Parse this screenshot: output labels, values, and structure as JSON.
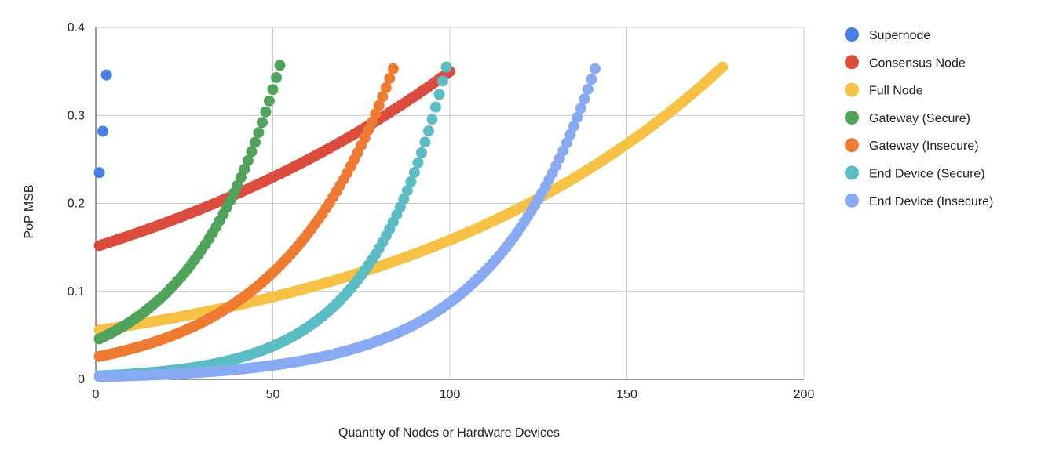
{
  "chart_data": {
    "type": "scatter",
    "xlabel": "Quantity of Nodes or Hardware Devices",
    "ylabel": "PoP MSB",
    "xlim": [
      0,
      200
    ],
    "ylim": [
      0,
      0.4
    ],
    "x_ticks": [
      "0",
      "50",
      "100",
      "150",
      "200"
    ],
    "y_ticks": [
      "0",
      "0.1",
      "0.2",
      "0.3",
      "0.4"
    ],
    "grid": true,
    "legend_position": "right",
    "series": [
      {
        "name": "Supernode",
        "color": "#4a7fe6",
        "x_start": 1,
        "x_end": 3,
        "x_step": 1,
        "y_points": [
          0.235,
          0.282,
          0.346
        ]
      },
      {
        "name": "Consensus Node",
        "color": "#db4b3e",
        "x_start": 1,
        "x_end": 100,
        "x_step": 1,
        "y_start": 0.152,
        "y_end": 0.35,
        "curve": "exponential"
      },
      {
        "name": "Full Node",
        "color": "#f6c144",
        "x_start": 1,
        "x_end": 177,
        "x_step": 1,
        "y_start": 0.056,
        "y_end": 0.355,
        "curve": "exponential"
      },
      {
        "name": "Gateway (Secure)",
        "color": "#4fa35a",
        "x_start": 1,
        "x_end": 52,
        "x_step": 1,
        "y_start": 0.046,
        "y_end": 0.357,
        "curve": "exponential"
      },
      {
        "name": "Gateway (Insecure)",
        "color": "#ef7b33",
        "x_start": 1,
        "x_end": 84,
        "x_step": 1,
        "y_start": 0.026,
        "y_end": 0.353,
        "curve": "exponential"
      },
      {
        "name": "End Device (Secure)",
        "color": "#5bbcc4",
        "x_start": 1,
        "x_end": 99,
        "x_step": 1,
        "y_start": 0.004,
        "y_end": 0.355,
        "curve": "exponential"
      },
      {
        "name": "End Device (Insecure)",
        "color": "#88aaf2",
        "x_start": 1,
        "x_end": 141,
        "x_step": 1,
        "y_start": 0.003,
        "y_end": 0.353,
        "curve": "exponential"
      }
    ]
  }
}
